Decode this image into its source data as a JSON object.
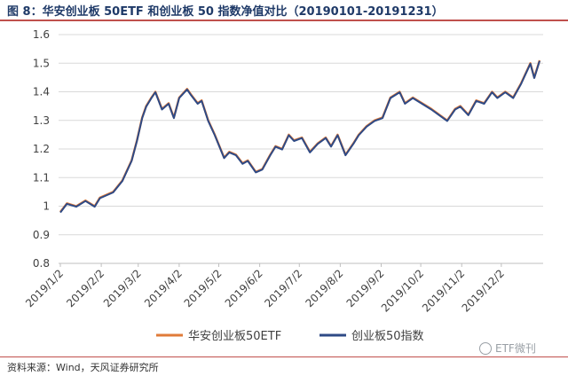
{
  "header": {
    "title": "图 8：华安创业板 50ETF 和创业板 50 指数净值对比（20190101-20191231）"
  },
  "footer": {
    "source": "资料来源：Wind，天风证券研究所",
    "watermark": "ETF微刊",
    "watermark_icon": "wechat-icon"
  },
  "colors": {
    "accent_rule": "#c0504d",
    "title": "#1f3a68",
    "series_etf": "#e07b39",
    "series_index": "#2e4a86",
    "grid": "#d9d9d9"
  },
  "chart_data": {
    "type": "line",
    "title": "",
    "xlabel": "",
    "ylabel": "",
    "ylim": [
      0.8,
      1.6
    ],
    "yticks": [
      "0.8",
      "0.9",
      "1",
      "1.1",
      "1.2",
      "1.3",
      "1.4",
      "1.5",
      "1.6"
    ],
    "grid": true,
    "legend_position": "bottom",
    "x_tick_labels": [
      "2019/1/2",
      "2019/2/2",
      "2019/3/2",
      "2019/4/2",
      "2019/5/2",
      "2019/6/2",
      "2019/7/2",
      "2019/8/2",
      "2019/9/2",
      "2019/10/2",
      "2019/11/2",
      "2019/12/2"
    ],
    "x": [
      "2019-01-02",
      "2019-01-07",
      "2019-01-14",
      "2019-01-21",
      "2019-01-28",
      "2019-02-01",
      "2019-02-11",
      "2019-02-18",
      "2019-02-25",
      "2019-03-01",
      "2019-03-05",
      "2019-03-08",
      "2019-03-12",
      "2019-03-15",
      "2019-03-20",
      "2019-03-25",
      "2019-03-29",
      "2019-04-02",
      "2019-04-08",
      "2019-04-11",
      "2019-04-16",
      "2019-04-19",
      "2019-04-24",
      "2019-04-29",
      "2019-05-06",
      "2019-05-10",
      "2019-05-15",
      "2019-05-20",
      "2019-05-24",
      "2019-05-30",
      "2019-06-04",
      "2019-06-10",
      "2019-06-14",
      "2019-06-19",
      "2019-06-24",
      "2019-06-28",
      "2019-07-04",
      "2019-07-10",
      "2019-07-16",
      "2019-07-22",
      "2019-07-26",
      "2019-07-31",
      "2019-08-06",
      "2019-08-12",
      "2019-08-16",
      "2019-08-22",
      "2019-08-28",
      "2019-09-03",
      "2019-09-09",
      "2019-09-16",
      "2019-09-20",
      "2019-09-26",
      "2019-10-10",
      "2019-10-16",
      "2019-10-22",
      "2019-10-28",
      "2019-11-01",
      "2019-11-07",
      "2019-11-13",
      "2019-11-19",
      "2019-11-25",
      "2019-11-29",
      "2019-12-05",
      "2019-12-11",
      "2019-12-17",
      "2019-12-20",
      "2019-12-24",
      "2019-12-27",
      "2019-12-31"
    ],
    "series": [
      {
        "name": "华安创业板50ETF",
        "color": "#e07b39",
        "values": [
          0.98,
          1.01,
          1.0,
          1.02,
          1.0,
          1.03,
          1.05,
          1.09,
          1.16,
          1.23,
          1.31,
          1.35,
          1.38,
          1.4,
          1.34,
          1.36,
          1.31,
          1.38,
          1.41,
          1.39,
          1.36,
          1.37,
          1.3,
          1.25,
          1.17,
          1.19,
          1.18,
          1.15,
          1.16,
          1.12,
          1.13,
          1.18,
          1.21,
          1.2,
          1.25,
          1.23,
          1.24,
          1.19,
          1.22,
          1.24,
          1.21,
          1.25,
          1.18,
          1.22,
          1.25,
          1.28,
          1.3,
          1.31,
          1.38,
          1.4,
          1.36,
          1.38,
          1.34,
          1.32,
          1.3,
          1.34,
          1.35,
          1.32,
          1.37,
          1.36,
          1.4,
          1.38,
          1.4,
          1.38,
          1.43,
          1.46,
          1.5,
          1.45,
          1.51
        ]
      },
      {
        "name": "创业板50指数",
        "color": "#2e4a86",
        "values": [
          0.978,
          1.008,
          0.998,
          1.018,
          0.998,
          1.028,
          1.048,
          1.088,
          1.158,
          1.228,
          1.308,
          1.348,
          1.378,
          1.398,
          1.338,
          1.358,
          1.308,
          1.378,
          1.408,
          1.388,
          1.358,
          1.368,
          1.298,
          1.248,
          1.168,
          1.188,
          1.178,
          1.148,
          1.158,
          1.118,
          1.128,
          1.178,
          1.208,
          1.198,
          1.248,
          1.228,
          1.238,
          1.188,
          1.218,
          1.238,
          1.208,
          1.248,
          1.178,
          1.218,
          1.248,
          1.278,
          1.298,
          1.308,
          1.378,
          1.398,
          1.358,
          1.378,
          1.338,
          1.318,
          1.298,
          1.338,
          1.348,
          1.318,
          1.368,
          1.358,
          1.398,
          1.378,
          1.398,
          1.378,
          1.428,
          1.458,
          1.498,
          1.448,
          1.508
        ]
      }
    ]
  }
}
